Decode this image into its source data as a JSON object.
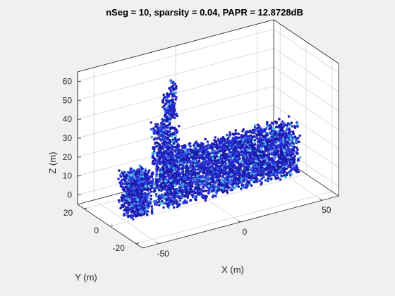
{
  "figure": {
    "background": "#f0f0f0",
    "axes_background": "#ffffff"
  },
  "chart_data": {
    "type": "scatter3d",
    "title": "nSeg = 10, sparsity = 0.04, PAPR = 12.8728dB",
    "xlabel": "X (m)",
    "ylabel": "Y (m)",
    "zlabel": "Z (m)",
    "xlim": [
      -60,
      60
    ],
    "ylim": [
      -25,
      25
    ],
    "zlim": [
      -5,
      65
    ],
    "xticks": [
      {
        "value": -50,
        "label": "-50"
      },
      {
        "value": 0,
        "label": "0"
      },
      {
        "value": 50,
        "label": "50"
      }
    ],
    "yticks": [
      {
        "value": -20,
        "label": "-20"
      },
      {
        "value": 0,
        "label": "0"
      },
      {
        "value": 20,
        "label": "20"
      }
    ],
    "zticks": [
      {
        "value": 0,
        "label": "0"
      },
      {
        "value": 10,
        "label": "10"
      },
      {
        "value": 20,
        "label": "20"
      },
      {
        "value": 30,
        "label": "30"
      },
      {
        "value": 40,
        "label": "40"
      },
      {
        "value": 50,
        "label": "50"
      },
      {
        "value": 60,
        "label": "60"
      }
    ],
    "grid": true,
    "colors": [
      "#1a1aa8",
      "#2b2bd6",
      "#3050e0",
      "#3f80e8",
      "#30b0e8",
      "#50d0f0"
    ],
    "point_seed": 7,
    "segments": [
      {
        "name": "left-block",
        "x": [
          -52,
          -38
        ],
        "y": [
          -6,
          4
        ],
        "z": [
          -1,
          21
        ],
        "count": 700
      },
      {
        "name": "tower",
        "x": [
          -32,
          -22
        ],
        "y": [
          -6,
          4
        ],
        "z": [
          -1,
          42
        ],
        "count": 650
      },
      {
        "name": "spire-1",
        "x": [
          -28,
          -24
        ],
        "y": [
          -3,
          1
        ],
        "z": [
          42,
          58
        ],
        "count": 80
      },
      {
        "name": "spire-2",
        "x": [
          -24,
          -21
        ],
        "y": [
          -3,
          1
        ],
        "z": [
          44,
          64
        ],
        "count": 90
      },
      {
        "name": "long-body",
        "x": [
          -22,
          52
        ],
        "y": [
          -6,
          4
        ],
        "z": [
          -1,
          24
        ],
        "count": 2600
      },
      {
        "name": "upper-strip",
        "x": [
          -22,
          52
        ],
        "y": [
          -6,
          4
        ],
        "z": [
          22,
          26
        ],
        "count": 400
      }
    ]
  }
}
